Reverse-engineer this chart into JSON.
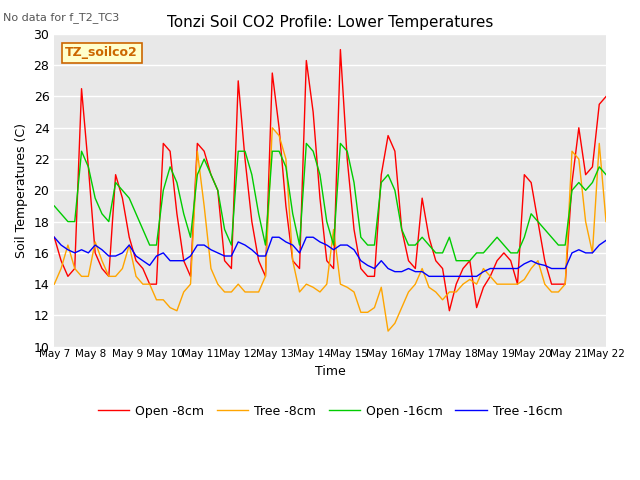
{
  "title": "Tonzi Soil CO2 Profile: Lower Temperatures",
  "subtitle": "No data for f_T2_TC3",
  "xlabel": "Time",
  "ylabel": "Soil Temperatures (C)",
  "ylim": [
    10,
    30
  ],
  "yticks": [
    10,
    12,
    14,
    16,
    18,
    20,
    22,
    24,
    26,
    28,
    30
  ],
  "legend_label": "TZ_soilco2",
  "xtick_labels": [
    "May 7",
    "May 8",
    "May 9",
    "May 10",
    "May 11",
    "May 12",
    "May 13",
    "May 14",
    "May 15",
    "May 16",
    "May 17",
    "May 18",
    "May 19",
    "May 20",
    "May 21",
    "May 22"
  ],
  "series": {
    "open_8cm": {
      "color": "#ff0000",
      "label": "Open -8cm",
      "values": [
        17.0,
        15.5,
        14.5,
        15.0,
        26.5,
        21.5,
        16.0,
        15.0,
        14.5,
        21.0,
        19.5,
        17.0,
        15.5,
        15.0,
        14.0,
        14.0,
        23.0,
        22.5,
        18.5,
        15.5,
        14.5,
        23.0,
        22.5,
        21.0,
        20.0,
        15.5,
        15.0,
        27.0,
        22.0,
        18.0,
        15.5,
        14.5,
        27.5,
        24.0,
        19.0,
        15.5,
        15.0,
        28.3,
        25.0,
        19.5,
        15.5,
        15.0,
        29.0,
        22.0,
        17.5,
        15.0,
        14.5,
        14.5,
        21.0,
        23.5,
        22.5,
        17.5,
        15.5,
        15.0,
        19.5,
        17.0,
        15.5,
        15.0,
        12.3,
        14.0,
        15.0,
        15.5,
        12.5,
        13.8,
        14.5,
        15.5,
        16.0,
        15.5,
        14.0,
        21.0,
        20.5,
        18.0,
        15.5,
        14.0,
        14.0,
        14.0,
        20.5,
        24.0,
        21.0,
        21.5,
        25.5,
        26.0
      ]
    },
    "tree_8cm": {
      "color": "#ffa500",
      "label": "Tree -8cm",
      "values": [
        14.0,
        15.0,
        16.5,
        15.0,
        14.5,
        14.5,
        16.7,
        15.5,
        14.5,
        14.5,
        15.0,
        16.5,
        14.5,
        14.0,
        14.0,
        13.0,
        13.0,
        12.5,
        12.3,
        13.5,
        14.0,
        22.5,
        19.0,
        15.0,
        14.0,
        13.5,
        13.5,
        14.0,
        13.5,
        13.5,
        13.5,
        14.5,
        24.0,
        23.5,
        22.0,
        15.5,
        13.5,
        14.0,
        13.8,
        13.5,
        14.0,
        17.5,
        14.0,
        13.8,
        13.5,
        12.2,
        12.2,
        12.5,
        13.8,
        11.0,
        11.5,
        12.5,
        13.5,
        14.0,
        15.0,
        13.8,
        13.5,
        13.0,
        13.5,
        13.5,
        14.0,
        14.3,
        14.0,
        15.0,
        14.5,
        14.0,
        14.0,
        14.0,
        14.0,
        14.3,
        15.0,
        15.5,
        14.0,
        13.5,
        13.5,
        14.0,
        22.5,
        22.0,
        18.0,
        16.0,
        23.0,
        18.0
      ]
    },
    "open_16cm": {
      "color": "#00cc00",
      "label": "Open -16cm",
      "values": [
        19.0,
        18.5,
        18.0,
        18.0,
        22.5,
        21.5,
        19.5,
        18.5,
        18.0,
        20.5,
        20.0,
        19.5,
        18.5,
        17.5,
        16.5,
        16.5,
        20.0,
        21.5,
        20.5,
        18.5,
        17.0,
        21.0,
        22.0,
        21.0,
        20.0,
        17.5,
        16.5,
        22.5,
        22.5,
        21.0,
        18.5,
        16.5,
        22.5,
        22.5,
        21.5,
        18.5,
        16.5,
        23.0,
        22.5,
        21.0,
        18.0,
        16.5,
        23.0,
        22.5,
        20.5,
        17.0,
        16.5,
        16.5,
        20.5,
        21.0,
        20.0,
        17.5,
        16.5,
        16.5,
        17.0,
        16.5,
        16.0,
        16.0,
        17.0,
        15.5,
        15.5,
        15.5,
        16.0,
        16.0,
        16.5,
        17.0,
        16.5,
        16.0,
        16.0,
        17.0,
        18.5,
        18.0,
        17.5,
        17.0,
        16.5,
        16.5,
        20.0,
        20.5,
        20.0,
        20.5,
        21.5,
        21.0
      ]
    },
    "tree_16cm": {
      "color": "#0000ff",
      "label": "Tree -16cm",
      "values": [
        17.0,
        16.5,
        16.2,
        16.0,
        16.2,
        16.0,
        16.5,
        16.2,
        15.8,
        15.8,
        16.0,
        16.5,
        15.8,
        15.5,
        15.2,
        15.8,
        16.0,
        15.5,
        15.5,
        15.5,
        15.8,
        16.5,
        16.5,
        16.2,
        16.0,
        15.8,
        15.8,
        16.7,
        16.5,
        16.2,
        15.8,
        15.8,
        17.0,
        17.0,
        16.7,
        16.5,
        16.0,
        17.0,
        17.0,
        16.7,
        16.5,
        16.2,
        16.5,
        16.5,
        16.2,
        15.5,
        15.2,
        15.0,
        15.5,
        15.0,
        14.8,
        14.8,
        15.0,
        14.8,
        14.8,
        14.5,
        14.5,
        14.5,
        14.5,
        14.5,
        14.5,
        14.5,
        14.5,
        14.8,
        15.0,
        15.0,
        15.0,
        15.0,
        15.0,
        15.3,
        15.5,
        15.3,
        15.2,
        15.0,
        15.0,
        15.0,
        16.0,
        16.2,
        16.0,
        16.0,
        16.5,
        16.8
      ]
    }
  }
}
